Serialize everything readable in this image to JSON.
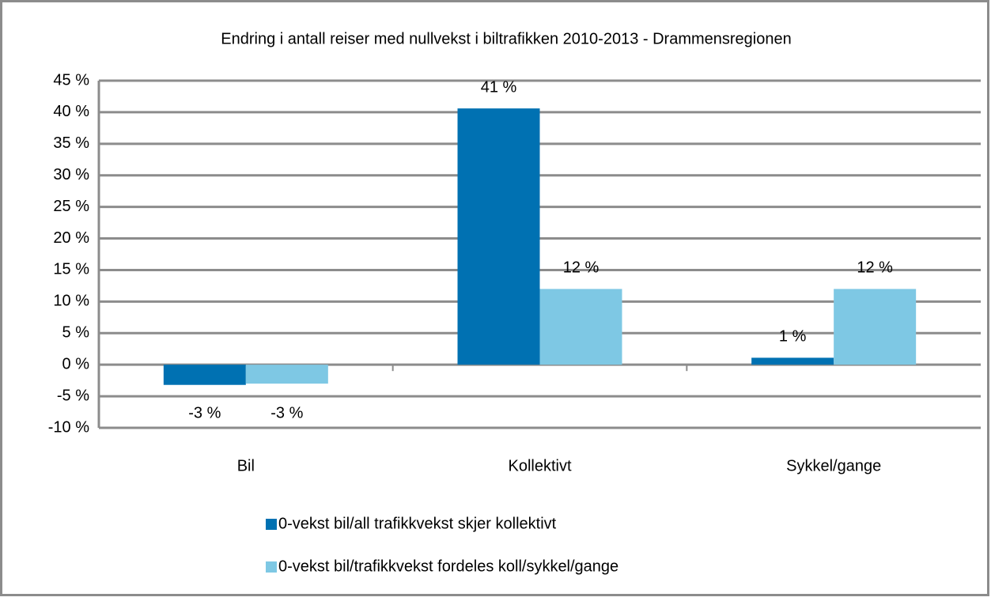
{
  "chart_data": {
    "type": "bar",
    "title": "Endring i antall reiser med nullvekst i biltrafikken 2010-2013 - Drammensregionen",
    "categories": [
      "Bil",
      "Kollektivt",
      "Sykkel/gange"
    ],
    "series": [
      {
        "name": "0-vekst bil/all trafikkvekst skjer kollektivt",
        "color": "#0071b2",
        "values": [
          -3.2,
          40.6,
          1.1
        ],
        "value_labels": [
          "-3 %",
          "41 %",
          "1 %"
        ]
      },
      {
        "name": "0-vekst bil/trafikkvekst  fordeles koll/sykkel/gange",
        "color": "#7ec8e4",
        "values": [
          -3,
          12,
          12
        ],
        "value_labels": [
          "-3 %",
          "12 %",
          "12 %"
        ]
      }
    ],
    "ylim": [
      -10,
      45
    ],
    "yticks": [
      {
        "value": -10,
        "label": "-10 %"
      },
      {
        "value": -5,
        "label": "-5 %"
      },
      {
        "value": 0,
        "label": "0 %"
      },
      {
        "value": 5,
        "label": "5 %"
      },
      {
        "value": 10,
        "label": "10 %"
      },
      {
        "value": 15,
        "label": "15 %"
      },
      {
        "value": 20,
        "label": "20 %"
      },
      {
        "value": 25,
        "label": "25 %"
      },
      {
        "value": 30,
        "label": "30 %"
      },
      {
        "value": 35,
        "label": "35 %"
      },
      {
        "value": 40,
        "label": "40 %"
      },
      {
        "value": 45,
        "label": "45 %"
      }
    ],
    "grid": true,
    "legend": "bottom"
  }
}
